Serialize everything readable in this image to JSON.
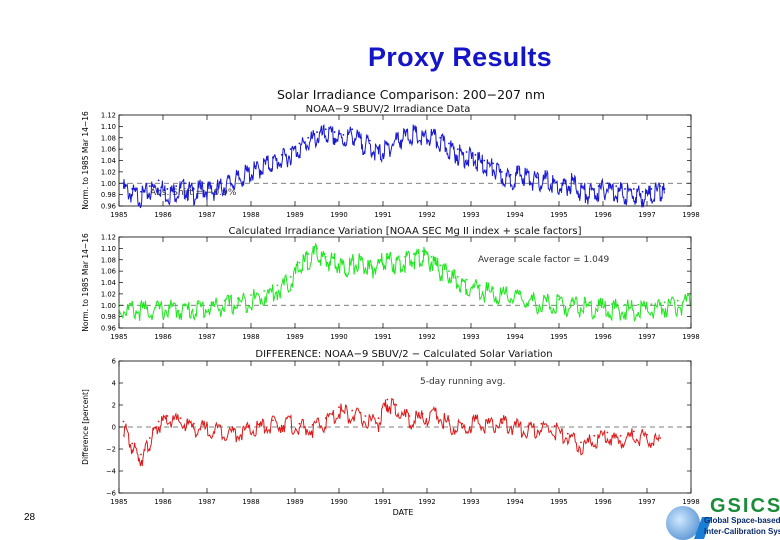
{
  "slide": {
    "title": "Proxy Results",
    "slide_number": "28",
    "logo_word": "GSICS",
    "logo_line1": "Global Space-based",
    "logo_line2": "Inter-Calibration System"
  },
  "figure_title": "Solar Irradiance Comparison:  200−207 nm",
  "x_axis": {
    "label": "DATE",
    "range": [
      1985,
      1998
    ],
    "ticks": [
      "1985",
      "1986",
      "1987",
      "1988",
      "1989",
      "1990",
      "1991",
      "1992",
      "1993",
      "1994",
      "1995",
      "1996",
      "1997",
      "1998"
    ]
  },
  "colors": {
    "panel1": "#1a1ad0",
    "panel2": "#1ee61e",
    "panel3": "#dd1a1a",
    "frame": "#000000",
    "refline": "#555555"
  },
  "chart_data": [
    {
      "type": "line",
      "title": "NOAA−9 SBUV/2 Irradiance Data",
      "ylabel": "Norm. to 1985 Mar 14−16",
      "ylim": [
        0.96,
        1.12
      ],
      "yticks": [
        "0.96",
        "0.98",
        "1.00",
        "1.02",
        "1.04",
        "1.06",
        "1.08",
        "1.10",
        "1.12"
      ],
      "reference_line": 1.0,
      "annotation": "Abs. Shift = −0.9%",
      "color": "#1a1ad0",
      "x": [
        1985.1,
        1985.3,
        1985.5,
        1985.7,
        1985.9,
        1986.1,
        1986.3,
        1986.5,
        1986.7,
        1986.9,
        1987.1,
        1987.3,
        1987.5,
        1987.7,
        1987.9,
        1988.1,
        1988.3,
        1988.5,
        1988.7,
        1988.9,
        1989.1,
        1989.3,
        1989.5,
        1989.7,
        1989.9,
        1990.1,
        1990.3,
        1990.5,
        1990.7,
        1990.9,
        1991.1,
        1991.3,
        1991.5,
        1991.7,
        1991.9,
        1992.1,
        1992.3,
        1992.5,
        1992.7,
        1992.9,
        1993.1,
        1993.3,
        1993.5,
        1993.7,
        1993.9,
        1994.1,
        1994.3,
        1994.5,
        1994.7,
        1994.9,
        1995.1,
        1995.3,
        1995.5,
        1995.7,
        1995.9,
        1996.1,
        1996.3,
        1996.5,
        1996.7,
        1996.9,
        1997.1,
        1997.3,
        1997.4
      ],
      "y": [
        1.0,
        0.99,
        0.985,
        0.995,
        1.005,
        0.99,
        0.995,
        1.0,
        0.99,
        1.0,
        0.995,
        1.0,
        1.01,
        1.015,
        1.025,
        1.03,
        1.04,
        1.045,
        1.05,
        1.06,
        1.07,
        1.08,
        1.09,
        1.095,
        1.09,
        1.085,
        1.095,
        1.08,
        1.075,
        1.06,
        1.07,
        1.085,
        1.09,
        1.095,
        1.085,
        1.09,
        1.08,
        1.07,
        1.06,
        1.055,
        1.05,
        1.04,
        1.035,
        1.02,
        1.015,
        1.025,
        1.02,
        1.01,
        1.015,
        1.005,
        1.0,
        1.01,
        0.995,
        0.99,
        0.995,
        1.0,
        0.995,
        0.99,
        0.99,
        0.985,
        0.99,
        0.995,
        0.99
      ]
    },
    {
      "type": "line",
      "title": "Calculated Irradiance Variation  [NOAA SEC Mg II index + scale factors]",
      "ylabel": "Norm. to 1985 Mar 14−16",
      "ylim": [
        0.96,
        1.12
      ],
      "yticks": [
        "0.96",
        "0.98",
        "1.00",
        "1.02",
        "1.04",
        "1.06",
        "1.08",
        "1.10",
        "1.12"
      ],
      "reference_line": 1.0,
      "annotation": "Average scale factor = 1.049",
      "color": "#1ee61e",
      "x": [
        1985.0,
        1985.3,
        1985.6,
        1985.9,
        1986.2,
        1986.5,
        1986.8,
        1987.1,
        1987.4,
        1987.7,
        1988.0,
        1988.3,
        1988.6,
        1988.9,
        1989.1,
        1989.3,
        1989.5,
        1989.7,
        1989.9,
        1990.1,
        1990.3,
        1990.5,
        1990.7,
        1990.9,
        1991.1,
        1991.3,
        1991.5,
        1991.7,
        1991.9,
        1992.1,
        1992.3,
        1992.5,
        1992.7,
        1992.9,
        1993.2,
        1993.5,
        1993.8,
        1994.1,
        1994.4,
        1994.7,
        1995.0,
        1995.3,
        1995.6,
        1995.9,
        1996.2,
        1996.5,
        1996.8,
        1997.1,
        1997.4,
        1997.7,
        1998.0
      ],
      "y": [
        1.002,
        1.001,
        1.0,
        1.001,
        1.002,
        1.001,
        1.003,
        1.005,
        1.008,
        1.012,
        1.018,
        1.025,
        1.035,
        1.05,
        1.075,
        1.09,
        1.1,
        1.085,
        1.09,
        1.075,
        1.08,
        1.085,
        1.07,
        1.08,
        1.09,
        1.08,
        1.085,
        1.09,
        1.095,
        1.085,
        1.07,
        1.06,
        1.05,
        1.045,
        1.035,
        1.03,
        1.025,
        1.02,
        1.015,
        1.012,
        1.01,
        1.008,
        1.005,
        1.004,
        1.002,
        1.001,
        1.001,
        1.002,
        1.005,
        1.008,
        1.014
      ]
    },
    {
      "type": "line",
      "title": "DIFFERENCE:  NOAA−9 SBUV/2 − Calculated Solar Variation",
      "ylabel": "Difference [percent]",
      "xlabel": "DATE",
      "ylim": [
        -6,
        6
      ],
      "yticks": [
        "−6",
        "−4",
        "−2",
        "0",
        "2",
        "4",
        "6"
      ],
      "reference_line": 0,
      "annotation": "5-day running avg.",
      "color": "#dd1a1a",
      "x": [
        1985.1,
        1985.3,
        1985.5,
        1985.7,
        1985.9,
        1986.1,
        1986.4,
        1986.7,
        1987.0,
        1987.3,
        1987.6,
        1987.9,
        1988.2,
        1988.5,
        1988.8,
        1989.1,
        1989.4,
        1989.7,
        1990.0,
        1990.3,
        1990.6,
        1990.9,
        1991.1,
        1991.3,
        1991.6,
        1991.9,
        1992.2,
        1992.5,
        1992.8,
        1993.1,
        1993.4,
        1993.7,
        1994.0,
        1994.3,
        1994.6,
        1994.9,
        1995.2,
        1995.5,
        1995.8,
        1996.1,
        1996.4,
        1996.7,
        1997.0,
        1997.3
      ],
      "y": [
        0.5,
        -1.5,
        -2.5,
        -1.0,
        0.5,
        1.0,
        0.8,
        0.3,
        0.2,
        0.1,
        -0.2,
        0.0,
        0.3,
        0.6,
        0.8,
        0.3,
        0.2,
        0.8,
        1.8,
        1.5,
        1.0,
        0.8,
        2.5,
        2.0,
        1.0,
        1.2,
        1.5,
        0.6,
        0.3,
        0.8,
        0.6,
        0.7,
        0.4,
        0.1,
        0.3,
        0.1,
        -0.6,
        -1.4,
        -0.8,
        -0.5,
        -0.8,
        -0.4,
        -0.7,
        -1.0
      ]
    }
  ]
}
